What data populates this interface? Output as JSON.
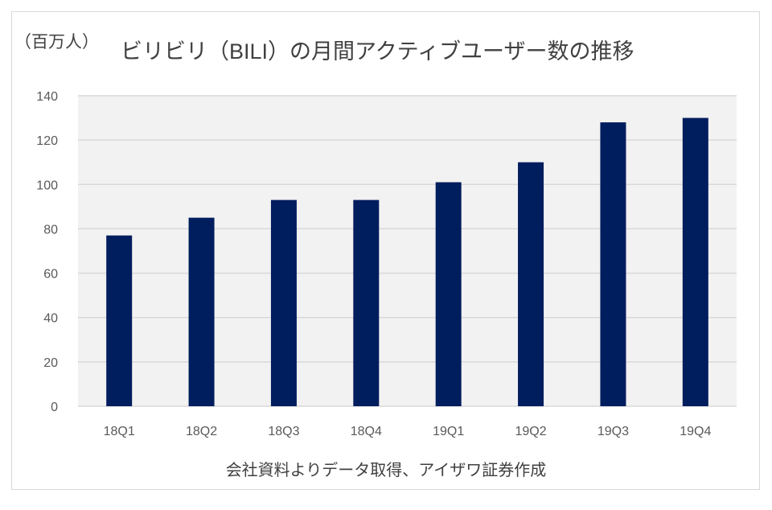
{
  "chart_data": {
    "type": "bar",
    "title": "ビリビリ（BILI）の月間アクティブユーザー数の推移",
    "ylabel": "（百万人）",
    "xlabel": "",
    "source": "会社資料よりデータ取得、アイザワ証券作成",
    "categories": [
      "18Q1",
      "18Q2",
      "18Q3",
      "18Q4",
      "19Q1",
      "19Q2",
      "19Q3",
      "19Q4"
    ],
    "values": [
      77,
      85,
      93,
      93,
      101,
      110,
      128,
      130
    ],
    "ylim": [
      0,
      140
    ],
    "yticks": [
      0,
      20,
      40,
      60,
      80,
      100,
      120,
      140
    ],
    "grid": true,
    "legend": "none",
    "colors": {
      "bar": "#001D5E",
      "plot_bg": "#F2F2F2",
      "grid": "#D9D9D9"
    }
  }
}
